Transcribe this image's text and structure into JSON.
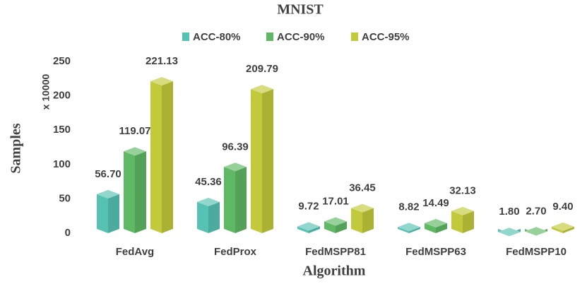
{
  "chart_data": {
    "type": "bar",
    "title": "MNIST",
    "y_label": "Samples",
    "y_annotation": "x 10000",
    "x_label": "Algorithm",
    "categories": [
      "FedAvg",
      "FedProx",
      "FedMSPP81",
      "FedMSPP63",
      "FedMSPP10"
    ],
    "series": [
      {
        "name": "ACC-80%",
        "color": "#55c2b4",
        "values": [
          56.7,
          45.36,
          9.72,
          8.82,
          1.8
        ],
        "value_labels": [
          "56.70",
          "45.36",
          "9.72",
          "8.82",
          "1.80"
        ]
      },
      {
        "name": "ACC-90%",
        "color": "#5fb864",
        "values": [
          119.07,
          96.39,
          17.01,
          14.49,
          2.7
        ],
        "value_labels": [
          "119.07",
          "96.39",
          "17.01",
          "14.49",
          "2.70"
        ]
      },
      {
        "name": "ACC-95%",
        "color": "#c2c93a",
        "values": [
          221.13,
          209.79,
          36.45,
          32.13,
          9.4
        ],
        "value_labels": [
          "221.13",
          "209.79",
          "36.45",
          "32.13",
          "9.40"
        ]
      }
    ],
    "ylim": [
      0,
      250
    ],
    "yticks": [
      0,
      50,
      100,
      150,
      200,
      250
    ],
    "legend": "top"
  }
}
